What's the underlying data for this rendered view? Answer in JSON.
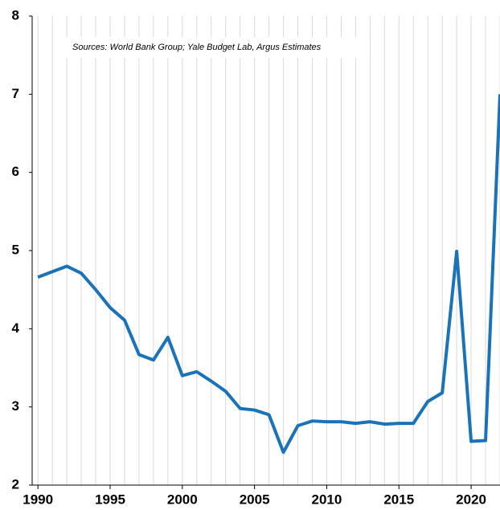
{
  "chart_data": {
    "type": "line",
    "annotation": "Sources:  World Bank Group; Yale Budget Lab, Argus Estimates",
    "x": [
      1990,
      1991,
      1992,
      1993,
      1994,
      1995,
      1996,
      1997,
      1998,
      1999,
      2000,
      2001,
      2002,
      2003,
      2004,
      2005,
      2006,
      2007,
      2008,
      2009,
      2010,
      2011,
      2012,
      2013,
      2014,
      2015,
      2016,
      2017,
      2018,
      2019,
      2020,
      2021,
      2022
    ],
    "series": [
      {
        "color": "#1a73b8",
        "values": [
          4.66,
          4.73,
          4.8,
          4.71,
          4.5,
          4.27,
          4.11,
          3.67,
          3.6,
          3.89,
          3.4,
          3.45,
          3.33,
          3.2,
          2.98,
          2.96,
          2.9,
          2.42,
          2.76,
          2.82,
          2.81,
          2.81,
          2.79,
          2.81,
          2.78,
          2.79,
          2.79,
          3.07,
          3.18,
          4.99,
          2.56,
          2.57,
          7.0
        ]
      }
    ],
    "xlim": [
      1989.6,
      2022
    ],
    "ylim": [
      2,
      8
    ],
    "xticks": [
      1990,
      1995,
      2000,
      2005,
      2010,
      2015,
      2020
    ],
    "yticks": [
      2,
      3,
      4,
      5,
      6,
      7,
      8
    ],
    "grid": "x"
  }
}
